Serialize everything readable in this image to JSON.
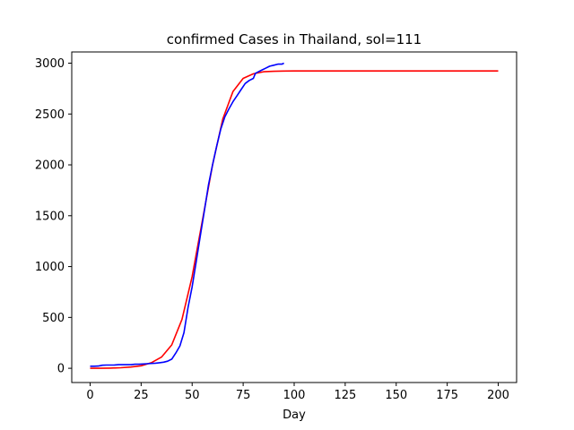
{
  "chart_data": {
    "type": "line",
    "title": "confirmed Cases in Thailand, sol=111",
    "xlabel": "Day",
    "ylabel": "",
    "xlim": [
      -9,
      209
    ],
    "ylim": [
      -140,
      3110
    ],
    "xticks": [
      0,
      25,
      50,
      75,
      100,
      125,
      150,
      175,
      200
    ],
    "yticks": [
      0,
      500,
      1000,
      1500,
      2000,
      2500,
      3000
    ],
    "grid": false,
    "series": [
      {
        "color": "#ff0000",
        "x": [
          0,
          5,
          10,
          15,
          20,
          25,
          30,
          35,
          40,
          45,
          50,
          55,
          60,
          65,
          70,
          75,
          80,
          85,
          90,
          95,
          100,
          110,
          120,
          140,
          160,
          180,
          200
        ],
        "values": [
          0,
          0,
          2,
          5,
          12,
          25,
          55,
          110,
          230,
          480,
          900,
          1450,
          2000,
          2450,
          2720,
          2850,
          2895,
          2915,
          2920,
          2922,
          2923,
          2923,
          2923,
          2923,
          2923,
          2923,
          2923
        ]
      },
      {
        "color": "#0000ff",
        "x": [
          0,
          2,
          4,
          6,
          8,
          10,
          12,
          14,
          16,
          18,
          20,
          22,
          24,
          26,
          28,
          30,
          32,
          34,
          36,
          38,
          40,
          42,
          44,
          46,
          48,
          50,
          52,
          54,
          56,
          58,
          60,
          62,
          64,
          66,
          68,
          70,
          72,
          74,
          76,
          78,
          80,
          81,
          82,
          84,
          86,
          88,
          90,
          92,
          94,
          95
        ],
        "values": [
          20,
          20,
          22,
          30,
          32,
          32,
          33,
          35,
          35,
          35,
          35,
          40,
          40,
          42,
          45,
          48,
          50,
          55,
          60,
          70,
          90,
          150,
          220,
          350,
          600,
          800,
          1050,
          1300,
          1550,
          1800,
          2000,
          2180,
          2350,
          2470,
          2550,
          2620,
          2680,
          2740,
          2800,
          2830,
          2850,
          2900,
          2910,
          2930,
          2950,
          2970,
          2980,
          2990,
          2990,
          3000
        ]
      }
    ]
  }
}
